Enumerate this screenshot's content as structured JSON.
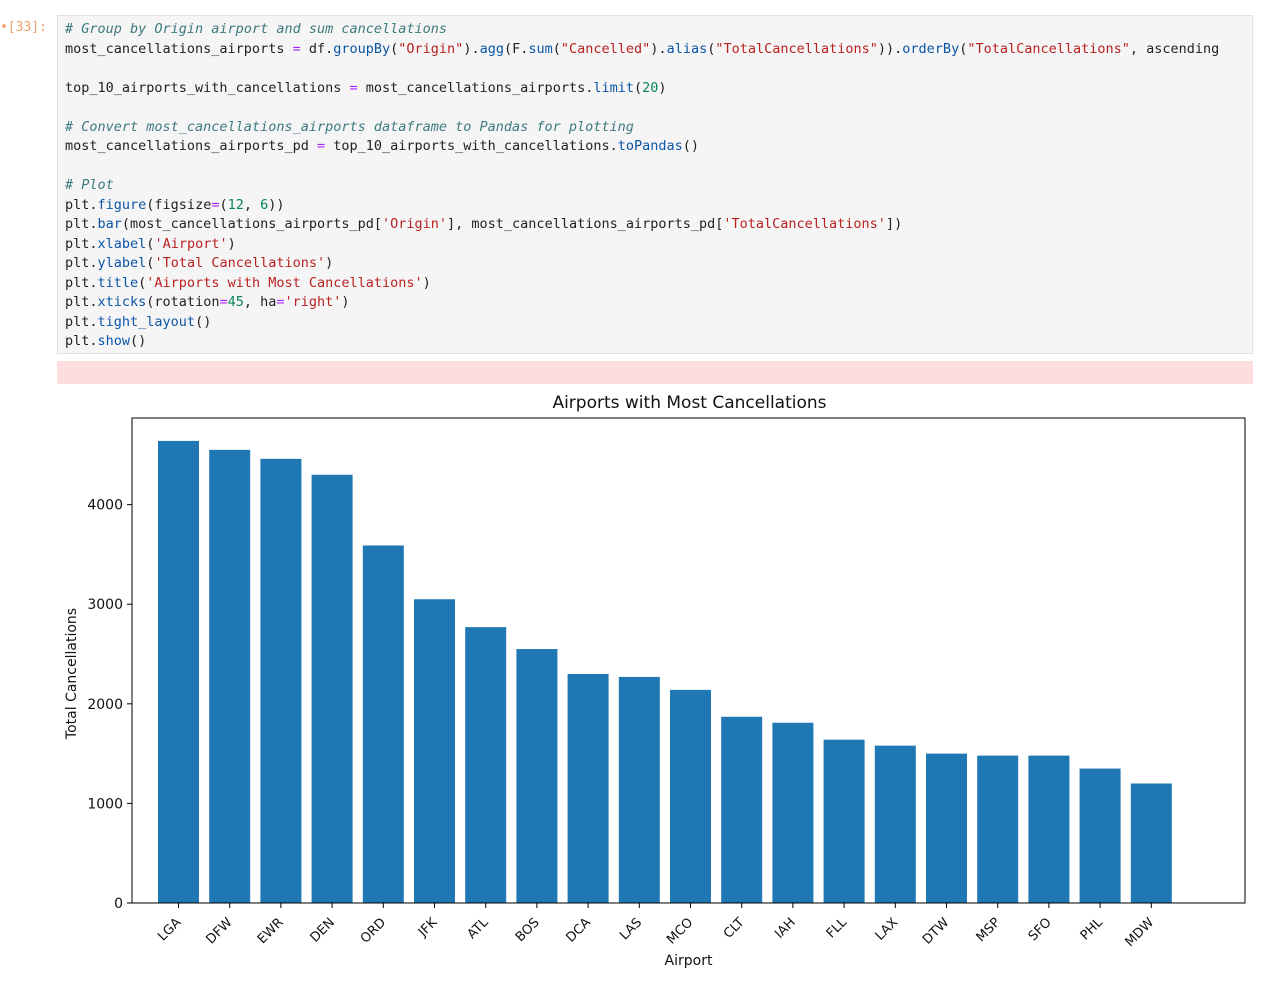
{
  "cell": {
    "prompt_label": "[33]:",
    "lines": [
      [
        {
          "t": "# Group by Origin airport and sum cancellations",
          "c": "c-comment"
        }
      ],
      [
        {
          "t": "most_cancellations_airports "
        },
        {
          "t": "=",
          "c": "c-op"
        },
        {
          "t": " df."
        },
        {
          "t": "groupBy",
          "c": "c-fn"
        },
        {
          "t": "("
        },
        {
          "t": "\"Origin\"",
          "c": "c-str"
        },
        {
          "t": ")."
        },
        {
          "t": "agg",
          "c": "c-fn"
        },
        {
          "t": "(F."
        },
        {
          "t": "sum",
          "c": "c-fn"
        },
        {
          "t": "("
        },
        {
          "t": "\"Cancelled\"",
          "c": "c-str"
        },
        {
          "t": ")."
        },
        {
          "t": "alias",
          "c": "c-fn"
        },
        {
          "t": "("
        },
        {
          "t": "\"TotalCancellations\"",
          "c": "c-str"
        },
        {
          "t": "))."
        },
        {
          "t": "orderBy",
          "c": "c-fn"
        },
        {
          "t": "("
        },
        {
          "t": "\"TotalCancellations\"",
          "c": "c-str"
        },
        {
          "t": ", ascending"
        }
      ],
      [],
      [
        {
          "t": "top_10_airports_with_cancellations "
        },
        {
          "t": "=",
          "c": "c-op"
        },
        {
          "t": " most_cancellations_airports."
        },
        {
          "t": "limit",
          "c": "c-fn"
        },
        {
          "t": "("
        },
        {
          "t": "20",
          "c": "c-num"
        },
        {
          "t": ")"
        }
      ],
      [],
      [
        {
          "t": "# Convert most_cancellations_airports dataframe to Pandas for plotting",
          "c": "c-comment"
        }
      ],
      [
        {
          "t": "most_cancellations_airports_pd "
        },
        {
          "t": "=",
          "c": "c-op"
        },
        {
          "t": " top_10_airports_with_cancellations."
        },
        {
          "t": "toPandas",
          "c": "c-fn"
        },
        {
          "t": "()"
        }
      ],
      [],
      [
        {
          "t": "# Plot",
          "c": "c-comment"
        }
      ],
      [
        {
          "t": "plt."
        },
        {
          "t": "figure",
          "c": "c-fn"
        },
        {
          "t": "(figsize"
        },
        {
          "t": "=",
          "c": "c-op"
        },
        {
          "t": "("
        },
        {
          "t": "12",
          "c": "c-num"
        },
        {
          "t": ", "
        },
        {
          "t": "6",
          "c": "c-num"
        },
        {
          "t": "))"
        }
      ],
      [
        {
          "t": "plt."
        },
        {
          "t": "bar",
          "c": "c-fn"
        },
        {
          "t": "(most_cancellations_airports_pd["
        },
        {
          "t": "'Origin'",
          "c": "c-str"
        },
        {
          "t": "], most_cancellations_airports_pd["
        },
        {
          "t": "'TotalCancellations'",
          "c": "c-str"
        },
        {
          "t": "])"
        }
      ],
      [
        {
          "t": "plt."
        },
        {
          "t": "xlabel",
          "c": "c-fn"
        },
        {
          "t": "("
        },
        {
          "t": "'Airport'",
          "c": "c-str"
        },
        {
          "t": ")"
        }
      ],
      [
        {
          "t": "plt."
        },
        {
          "t": "ylabel",
          "c": "c-fn"
        },
        {
          "t": "("
        },
        {
          "t": "'Total Cancellations'",
          "c": "c-str"
        },
        {
          "t": ")"
        }
      ],
      [
        {
          "t": "plt."
        },
        {
          "t": "title",
          "c": "c-fn"
        },
        {
          "t": "("
        },
        {
          "t": "'Airports with Most Cancellations'",
          "c": "c-str"
        },
        {
          "t": ")"
        }
      ],
      [
        {
          "t": "plt."
        },
        {
          "t": "xticks",
          "c": "c-fn"
        },
        {
          "t": "(rotation"
        },
        {
          "t": "=",
          "c": "c-op"
        },
        {
          "t": "45",
          "c": "c-num"
        },
        {
          "t": ", ha"
        },
        {
          "t": "=",
          "c": "c-op"
        },
        {
          "t": "'right'",
          "c": "c-str"
        },
        {
          "t": ")"
        }
      ],
      [
        {
          "t": "plt."
        },
        {
          "t": "tight_layout",
          "c": "c-fn"
        },
        {
          "t": "()"
        }
      ],
      [
        {
          "t": "plt."
        },
        {
          "t": "show",
          "c": "c-fn"
        },
        {
          "t": "()"
        }
      ]
    ]
  },
  "chart_data": {
    "type": "bar",
    "title": "Airports with Most Cancellations",
    "xlabel": "Airport",
    "ylabel": "Total Cancellations",
    "categories": [
      "LGA",
      "DFW",
      "EWR",
      "DEN",
      "ORD",
      "JFK",
      "ATL",
      "BOS",
      "DCA",
      "LAS",
      "MCO",
      "CLT",
      "IAH",
      "FLL",
      "LAX",
      "DTW",
      "MSP",
      "SFO",
      "PHL",
      "MDW"
    ],
    "values": [
      4640,
      4550,
      4460,
      4300,
      3590,
      3050,
      2770,
      2550,
      2300,
      2270,
      2140,
      1870,
      1810,
      1640,
      1580,
      1500,
      1480,
      1480,
      1350,
      1200
    ],
    "yticks": [
      0,
      1000,
      2000,
      3000,
      4000
    ],
    "ylim": [
      0,
      4870
    ],
    "bar_color": "#1f77b4",
    "grid": false,
    "xtick_rotation": 45
  }
}
